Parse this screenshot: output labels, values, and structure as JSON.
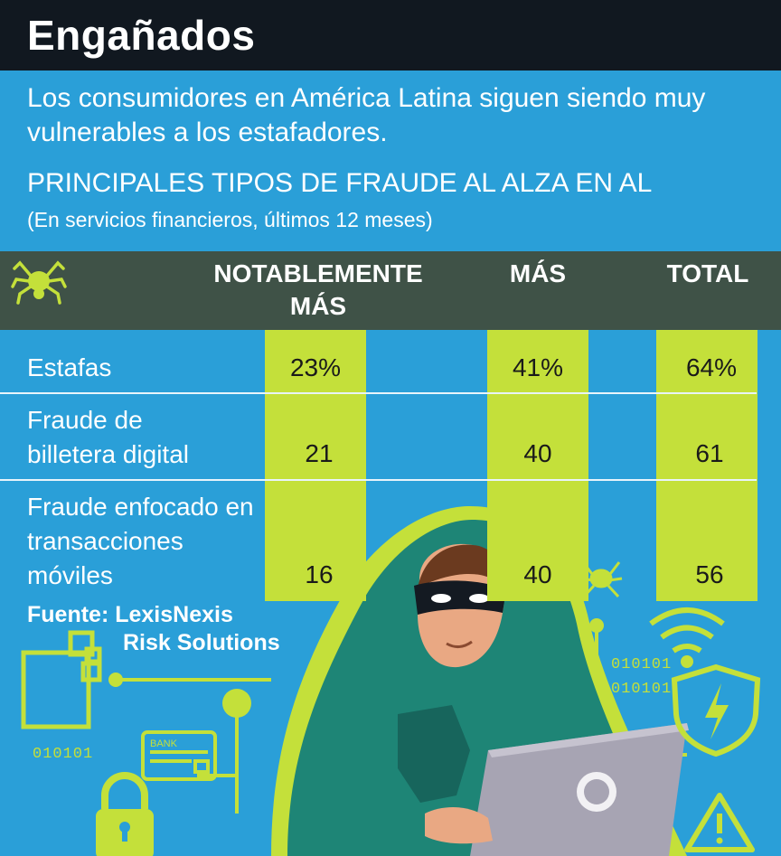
{
  "title": "Engañados",
  "intro": "Los consumidores en América Latina siguen siendo muy vulnerables a los estafadores.",
  "chart_data": {
    "type": "table",
    "title": "PRINCIPALES TIPOS DE FRAUDE AL ALZA EN AL",
    "subtitle": "(En servicios financieros, últimos 12 meses)",
    "columns": [
      "NOTABLEMENTE MÁS",
      "MÁS",
      "TOTAL"
    ],
    "rows": [
      {
        "label": "Estafas",
        "values": [
          "23%",
          "41%",
          "64%"
        ]
      },
      {
        "label": "Fraude de billetera digital",
        "values": [
          "21",
          "40",
          "61"
        ]
      },
      {
        "label": "Fraude enfocado en transacciones móviles",
        "values": [
          "16",
          "40",
          "56"
        ]
      }
    ]
  },
  "source": {
    "line1": "Fuente: LexisNexis",
    "line2": "Risk Solutions"
  },
  "decor": {
    "binary_1": "010101",
    "binary_2": "010101",
    "binary_3": "010101",
    "bank_label": "BANK",
    "accent_color": "#c4e03a",
    "background_color": "#2a9fd8",
    "header_color": "#111820",
    "band_color": "#3f5247",
    "icons": [
      "spider-icon",
      "hacker-illustration",
      "wifi-icon",
      "shield-bolt-icon",
      "padlock-icon",
      "bank-card-icon",
      "warning-icon",
      "laptop-icon"
    ]
  }
}
